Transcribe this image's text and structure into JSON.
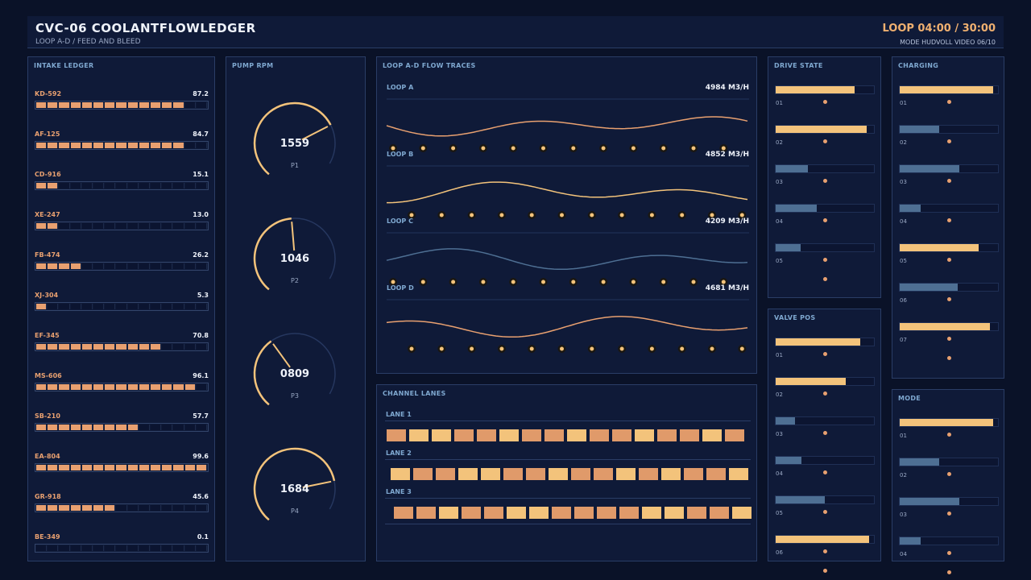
{
  "header": {
    "title": "CVC-06  COOLANTFLOWLEDGER",
    "subtitle": "LOOP A-D / FEED AND BLEED",
    "loop_time": "LOOP 04:00 / 30:00",
    "mode_line": "MODE HUDVOLL  VIDEO 06/10"
  },
  "colors": {
    "accent": "#e8a070",
    "accent_light": "#f3c37b",
    "blue": "#4e6f93",
    "bg": "#0a1228",
    "panel": "#0f1a38"
  },
  "intake": {
    "title": "INTAKE LEDGER",
    "segments": 15,
    "rows": [
      {
        "code": "KD-592",
        "value": "87.2",
        "fill": 0.872
      },
      {
        "code": "AF-125",
        "value": "84.7",
        "fill": 0.847
      },
      {
        "code": "CD-916",
        "value": "15.1",
        "fill": 0.151
      },
      {
        "code": "XE-247",
        "value": "13.0",
        "fill": 0.13
      },
      {
        "code": "FB-474",
        "value": "26.2",
        "fill": 0.262
      },
      {
        "code": "XJ-304",
        "value": "5.3",
        "fill": 0.053
      },
      {
        "code": "EF-345",
        "value": "70.8",
        "fill": 0.708
      },
      {
        "code": "MS-606",
        "value": "96.1",
        "fill": 0.961
      },
      {
        "code": "SB-210",
        "value": "57.7",
        "fill": 0.577
      },
      {
        "code": "EA-804",
        "value": "99.6",
        "fill": 0.996
      },
      {
        "code": "GR-918",
        "value": "45.6",
        "fill": 0.456
      },
      {
        "code": "BE-349",
        "value": "0.1",
        "fill": 0.001
      }
    ]
  },
  "pumps": {
    "title": "PUMP RPM",
    "max_rpm": 2000,
    "items": [
      {
        "label": "P1",
        "rpm": "1559",
        "level": 0.78
      },
      {
        "label": "P2",
        "rpm": "1046",
        "level": 0.52
      },
      {
        "label": "P3",
        "rpm": "0809",
        "level": 0.4
      },
      {
        "label": "P4",
        "rpm": "1684",
        "level": 0.84
      }
    ]
  },
  "flow": {
    "title": "LOOP A-D FLOW TRACES",
    "loops": [
      {
        "name": "LOOP A",
        "rate": "4984 M3/H",
        "color": "#e8a070"
      },
      {
        "name": "LOOP B",
        "rate": "4852 M3/H",
        "color": "#f3c37b"
      },
      {
        "name": "LOOP C",
        "rate": "4209 M3/H",
        "color": "#4e6f93"
      },
      {
        "name": "LOOP D",
        "rate": "4681 M3/H",
        "color": "#e8a070"
      }
    ]
  },
  "lanes": {
    "title": "CHANNEL LANES",
    "items": [
      {
        "label": "LANE 1",
        "pattern": [
          "o",
          "y",
          "y",
          "o",
          "o",
          "y",
          "o",
          "o",
          "y",
          "o",
          "o",
          "y",
          "o",
          "o",
          "y",
          "o"
        ]
      },
      {
        "label": "LANE 2",
        "pattern": [
          "y",
          "o",
          "o",
          "y",
          "y",
          "o",
          "o",
          "y",
          "o",
          "o",
          "y",
          "o",
          "y",
          "o",
          "o",
          "y"
        ]
      },
      {
        "label": "LANE 3",
        "pattern": [
          "o",
          "o",
          "y",
          "o",
          "o",
          "y",
          "y",
          "o",
          "o",
          "o",
          "o",
          "y",
          "y",
          "o",
          "o",
          "y"
        ]
      }
    ]
  },
  "drive_state": {
    "title": "DRIVE STATE",
    "rows": [
      {
        "idx": "01",
        "fill": 0.8,
        "color": "#f3c37b",
        "dot": 0.5
      },
      {
        "idx": "02",
        "fill": 0.93,
        "color": "#f3c37b",
        "dot": 0.5
      },
      {
        "idx": "03",
        "fill": 0.33,
        "color": "#4e6f93",
        "dot": 0.5
      },
      {
        "idx": "04",
        "fill": 0.42,
        "color": "#4e6f93",
        "dot": 0.5
      },
      {
        "idx": "05",
        "fill": 0.25,
        "color": "#4e6f93",
        "dot": 0.5
      }
    ]
  },
  "valve_pos": {
    "title": "VALVE POS",
    "rows": [
      {
        "idx": "01",
        "fill": 0.86,
        "color": "#f3c37b",
        "dot": 0.5
      },
      {
        "idx": "02",
        "fill": 0.71,
        "color": "#f3c37b",
        "dot": 0.5
      },
      {
        "idx": "03",
        "fill": 0.2,
        "color": "#4e6f93",
        "dot": 0.5
      },
      {
        "idx": "04",
        "fill": 0.26,
        "color": "#4e6f93",
        "dot": 0.5
      },
      {
        "idx": "05",
        "fill": 0.5,
        "color": "#4e6f93",
        "dot": 0.5
      },
      {
        "idx": "06",
        "fill": 0.95,
        "color": "#f3c37b",
        "dot": 0.5
      }
    ]
  },
  "charging": {
    "title": "CHARGING",
    "rows": [
      {
        "idx": "01",
        "fill": 0.95,
        "color": "#f3c37b",
        "dot": 0.5
      },
      {
        "idx": "02",
        "fill": 0.4,
        "color": "#4e6f93",
        "dot": 0.5
      },
      {
        "idx": "03",
        "fill": 0.61,
        "color": "#4e6f93",
        "dot": 0.5
      },
      {
        "idx": "04",
        "fill": 0.21,
        "color": "#4e6f93",
        "dot": 0.5
      },
      {
        "idx": "05",
        "fill": 0.8,
        "color": "#f3c37b",
        "dot": 0.5
      },
      {
        "idx": "06",
        "fill": 0.59,
        "color": "#4e6f93",
        "dot": 0.5
      },
      {
        "idx": "07",
        "fill": 0.92,
        "color": "#f3c37b",
        "dot": 0.5
      }
    ]
  },
  "mode": {
    "title": "MODE",
    "rows": [
      {
        "idx": "01",
        "fill": 0.95,
        "color": "#f3c37b",
        "dot": 0.5
      },
      {
        "idx": "02",
        "fill": 0.4,
        "color": "#4e6f93",
        "dot": 0.5
      },
      {
        "idx": "03",
        "fill": 0.61,
        "color": "#4e6f93",
        "dot": 0.5
      },
      {
        "idx": "04",
        "fill": 0.21,
        "color": "#4e6f93",
        "dot": 0.5
      }
    ]
  }
}
